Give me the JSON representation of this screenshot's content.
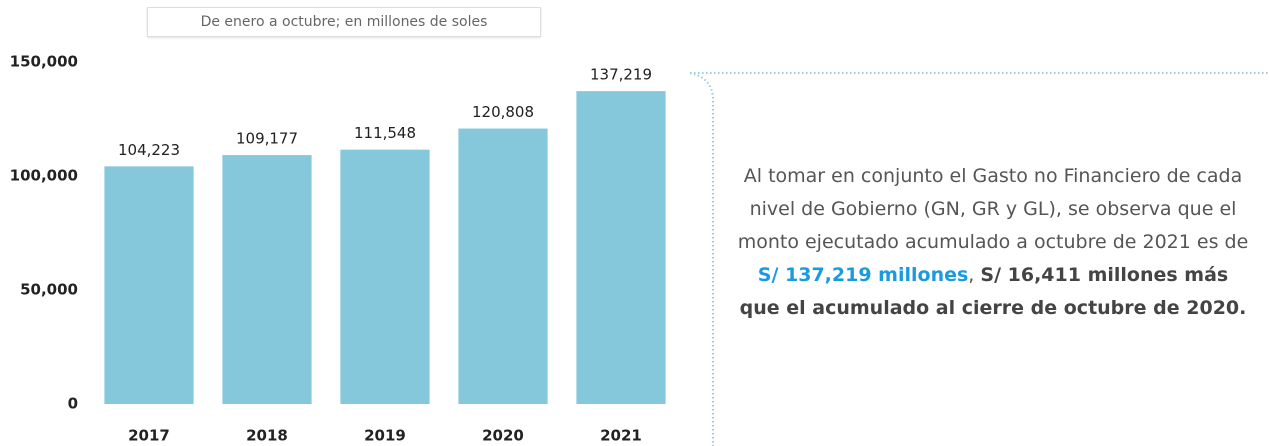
{
  "chart_data": {
    "type": "bar",
    "subtitle": "De enero a octubre; en millones de soles",
    "categories": [
      "2017",
      "2018",
      "2019",
      "2020",
      "2021"
    ],
    "values": [
      104223,
      109177,
      111548,
      120808,
      137219
    ],
    "value_labels": [
      "104,223",
      "109,177",
      "111,548",
      "120,808",
      "137,219"
    ],
    "color": "#85c8dc",
    "ylim": [
      0,
      150000
    ],
    "yticks": [
      0,
      {
        "value": 50000,
        "label": "50,000"
      },
      {
        "value": 100000,
        "label": "100,000"
      },
      {
        "value": 150000,
        "label": "150,000"
      }
    ],
    "grid": false
  },
  "note": {
    "parts": [
      "Al tomar en conjunto el Gasto no Financiero de cada nivel de Gobierno (GN, GR y GL), se observa que el monto ejecutado acumulado a octubre de 2021 es de ",
      "S/ 137,219 millones",
      ", ",
      "S/ 16,411 millones más que el acumulado al cierre de octubre de 2020."
    ]
  }
}
